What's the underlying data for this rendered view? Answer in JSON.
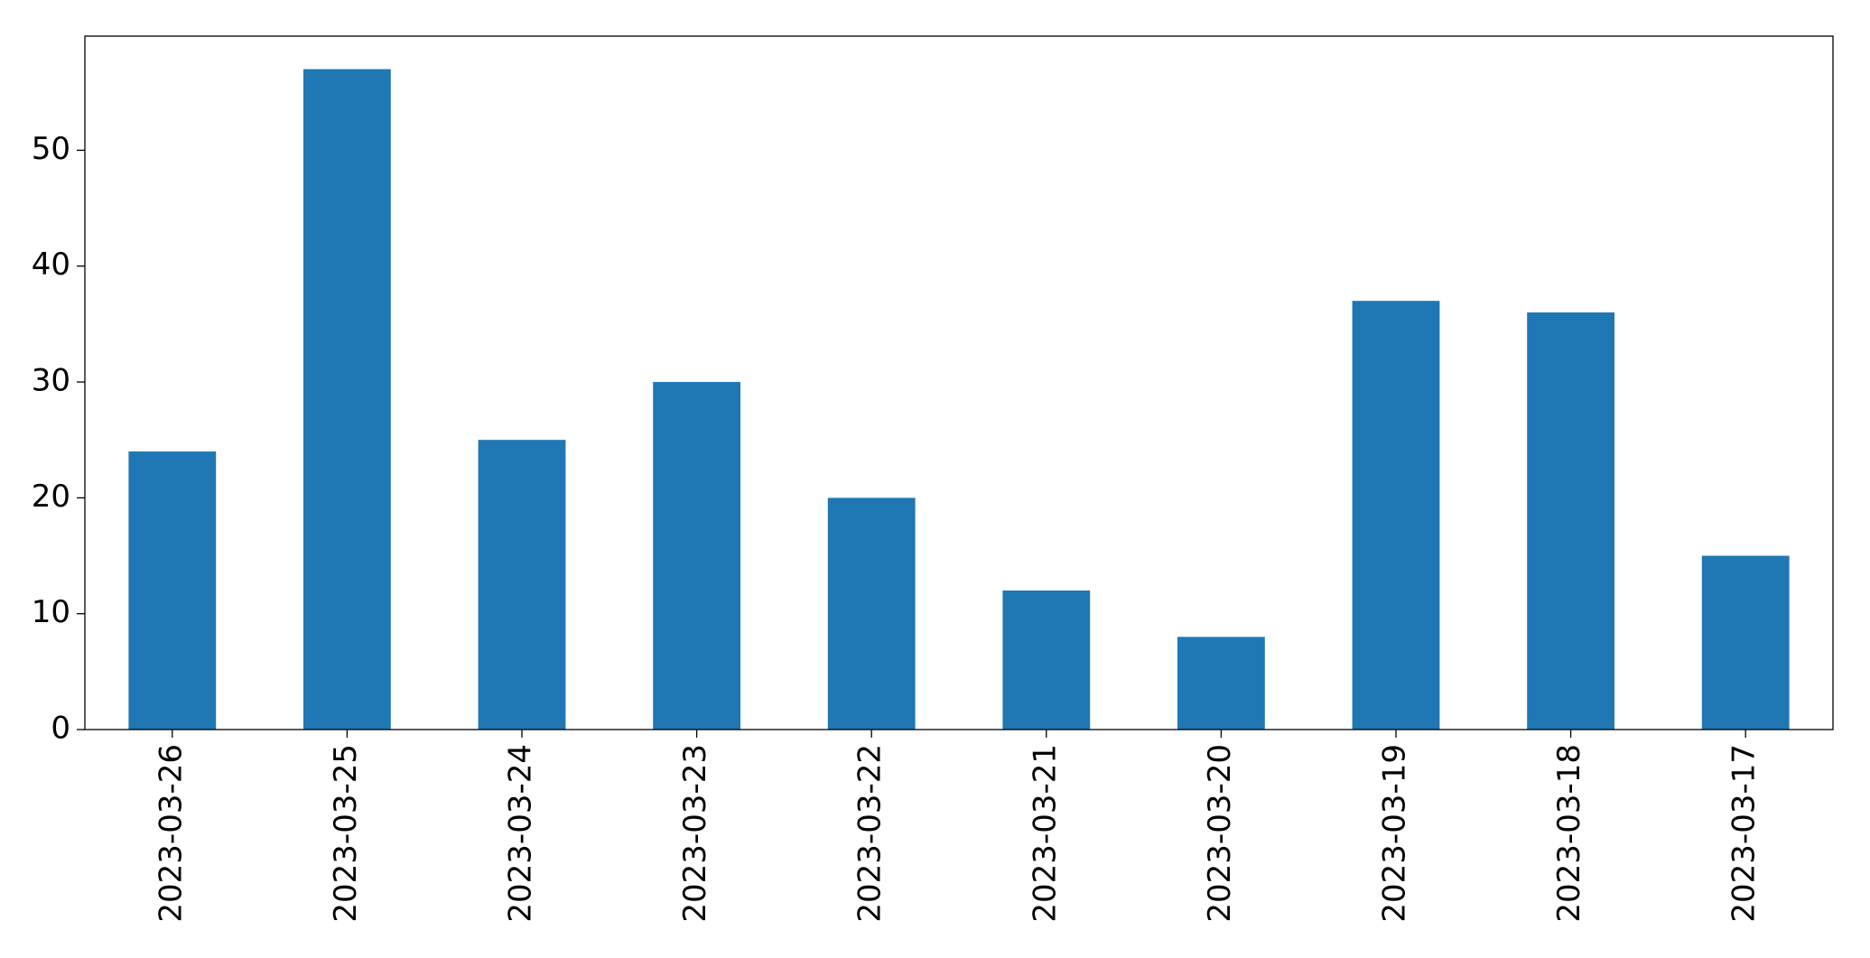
{
  "chart_data": {
    "type": "bar",
    "categories": [
      "2023-03-26",
      "2023-03-25",
      "2023-03-24",
      "2023-03-23",
      "2023-03-22",
      "2023-03-21",
      "2023-03-20",
      "2023-03-19",
      "2023-03-18",
      "2023-03-17"
    ],
    "values": [
      24,
      57,
      25,
      30,
      20,
      12,
      8,
      37,
      36,
      15
    ],
    "color": "#1f77b4",
    "ylim": [
      0,
      59.85
    ],
    "yticks": [
      0,
      10,
      20,
      30,
      40,
      50
    ],
    "grid": false
  }
}
